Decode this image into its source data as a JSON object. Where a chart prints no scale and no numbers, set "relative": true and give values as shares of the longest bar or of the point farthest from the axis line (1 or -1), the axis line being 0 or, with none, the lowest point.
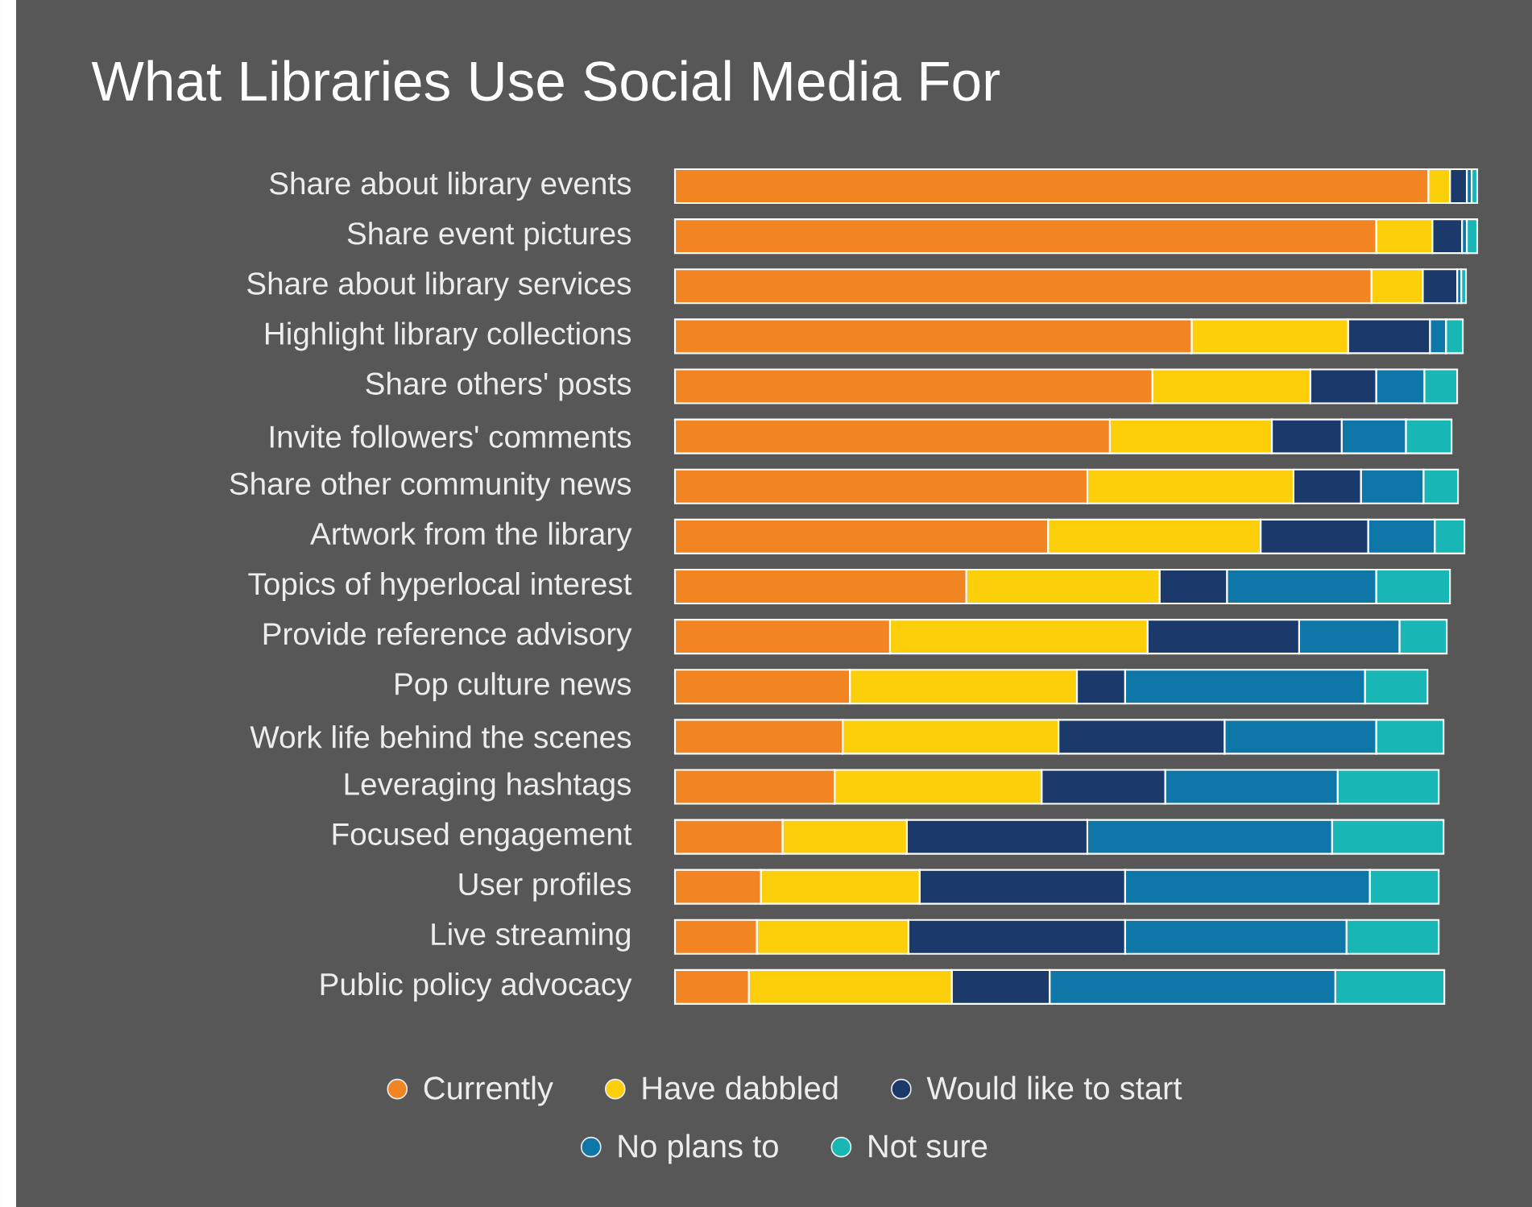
{
  "chart_data": {
    "type": "bar",
    "orientation": "horizontal",
    "stacked": true,
    "relative": true,
    "legend": "bottom",
    "title": "What Libraries Use Social Media For",
    "categories": [
      "Share about library events",
      "Share event pictures",
      "Share about library services",
      "Highlight library collections",
      "Share others' posts",
      "Invite followers' comments",
      "Share other community news",
      "Artwork from the library",
      "Topics of hyperlocal interest",
      "Provide reference advisory",
      "Pop culture news",
      "Work life behind the scenes",
      "Leveraging hashtags",
      "Focused engagement",
      "User profiles",
      "Live streaming",
      "Public policy advocacy"
    ],
    "series": [
      {
        "name": "Currently",
        "color": "#f28522",
        "values": [
          0.939,
          0.874,
          0.868,
          0.644,
          0.595,
          0.542,
          0.514,
          0.465,
          0.363,
          0.268,
          0.218,
          0.209,
          0.199,
          0.134,
          0.107,
          0.102,
          0.092
        ]
      },
      {
        "name": "Have dabbled",
        "color": "#fccf0a",
        "values": [
          0.027,
          0.07,
          0.064,
          0.195,
          0.197,
          0.202,
          0.257,
          0.265,
          0.241,
          0.321,
          0.283,
          0.269,
          0.258,
          0.155,
          0.198,
          0.189,
          0.253
        ]
      },
      {
        "name": "Would like to start",
        "color": "#1b3a6b",
        "values": [
          0.021,
          0.037,
          0.043,
          0.102,
          0.082,
          0.087,
          0.084,
          0.134,
          0.084,
          0.189,
          0.06,
          0.207,
          0.154,
          0.225,
          0.256,
          0.27,
          0.122
        ]
      },
      {
        "name": "No plans to",
        "color": "#0f76a8",
        "values": [
          0.006,
          0.006,
          0.005,
          0.02,
          0.06,
          0.08,
          0.078,
          0.083,
          0.186,
          0.125,
          0.299,
          0.189,
          0.215,
          0.305,
          0.305,
          0.276,
          0.356
        ]
      },
      {
        "name": "Not sure",
        "color": "#19b6b6",
        "values": [
          0.007,
          0.013,
          0.006,
          0.021,
          0.041,
          0.057,
          0.043,
          0.037,
          0.092,
          0.059,
          0.078,
          0.084,
          0.126,
          0.139,
          0.086,
          0.115,
          0.136
        ]
      }
    ]
  }
}
